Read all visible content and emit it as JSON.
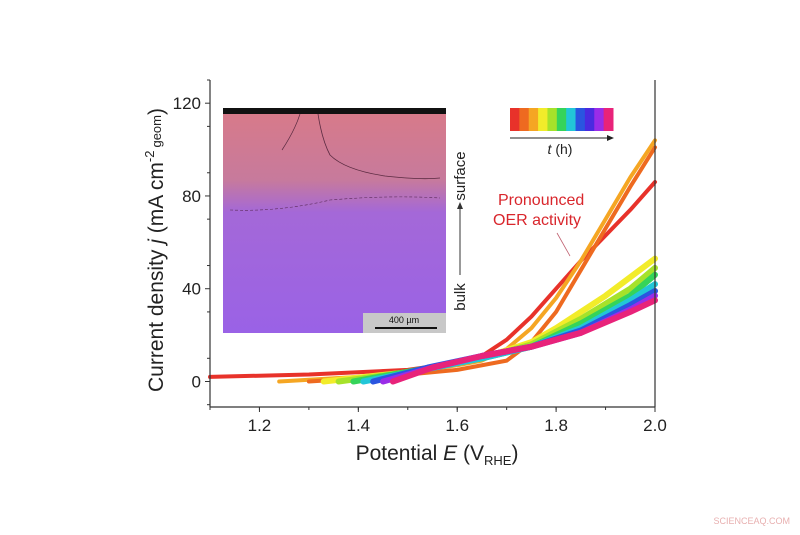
{
  "chart_data": {
    "type": "line",
    "xlabel": "Potential E (V_RHE)",
    "xlabel_parts": {
      "main": "Potential ",
      "var": "E",
      "open": " (V",
      "sub": "RHE",
      "close": ")"
    },
    "ylabel_parts": {
      "main": "Current density ",
      "var": "j",
      "unit": " (mA cm",
      "sup": "-2",
      "sub": "geom",
      "close": ")"
    },
    "xlim": [
      1.1,
      2.0
    ],
    "ylim": [
      -11,
      130
    ],
    "xticks": [
      "1.2",
      "1.4",
      "1.6",
      "1.8",
      "2.0"
    ],
    "xtick_values": [
      1.2,
      1.4,
      1.6,
      1.8,
      2.0
    ],
    "yticks": [
      "0",
      "40",
      "80",
      "120"
    ],
    "ytick_values": [
      0,
      40,
      80,
      120
    ],
    "grid": false,
    "series": [
      {
        "color": "#e8322a",
        "points": [
          [
            1.1,
            2
          ],
          [
            1.3,
            3
          ],
          [
            1.5,
            5
          ],
          [
            1.6,
            8
          ],
          [
            1.65,
            11
          ],
          [
            1.7,
            18
          ],
          [
            1.75,
            28
          ],
          [
            1.8,
            40
          ],
          [
            1.85,
            52
          ],
          [
            1.9,
            63
          ],
          [
            1.95,
            74
          ],
          [
            2.0,
            86
          ]
        ]
      },
      {
        "color": "#f5a623",
        "points": [
          [
            1.24,
            0
          ],
          [
            1.4,
            2
          ],
          [
            1.5,
            4
          ],
          [
            1.6,
            7
          ],
          [
            1.65,
            9
          ],
          [
            1.7,
            14
          ],
          [
            1.75,
            23
          ],
          [
            1.8,
            36
          ],
          [
            1.85,
            52
          ],
          [
            1.9,
            70
          ],
          [
            1.95,
            88
          ],
          [
            2.0,
            104
          ]
        ]
      },
      {
        "color": "#ee6a20",
        "points": [
          [
            1.3,
            0
          ],
          [
            1.45,
            2
          ],
          [
            1.6,
            5
          ],
          [
            1.7,
            9
          ],
          [
            1.75,
            17
          ],
          [
            1.8,
            30
          ],
          [
            1.85,
            48
          ],
          [
            1.9,
            66
          ],
          [
            1.95,
            84
          ],
          [
            2.0,
            101
          ]
        ]
      },
      {
        "color": "#f2ec2a",
        "points": [
          [
            1.33,
            0
          ],
          [
            1.5,
            4
          ],
          [
            1.65,
            10
          ],
          [
            1.75,
            17
          ],
          [
            1.8,
            23
          ],
          [
            1.9,
            37
          ],
          [
            2.0,
            53
          ]
        ]
      },
      {
        "color": "#a6e22a",
        "points": [
          [
            1.36,
            0
          ],
          [
            1.5,
            4
          ],
          [
            1.65,
            10
          ],
          [
            1.75,
            16
          ],
          [
            1.85,
            27
          ],
          [
            1.95,
            40
          ],
          [
            2.0,
            49
          ]
        ]
      },
      {
        "color": "#35d45a",
        "points": [
          [
            1.39,
            0
          ],
          [
            1.52,
            5
          ],
          [
            1.65,
            10
          ],
          [
            1.75,
            15
          ],
          [
            1.85,
            25
          ],
          [
            1.95,
            37
          ],
          [
            2.0,
            46
          ]
        ]
      },
      {
        "color": "#22c6d8",
        "points": [
          [
            1.41,
            0
          ],
          [
            1.53,
            5
          ],
          [
            1.65,
            10
          ],
          [
            1.75,
            15
          ],
          [
            1.85,
            23
          ],
          [
            1.95,
            35
          ],
          [
            2.0,
            42
          ]
        ]
      },
      {
        "color": "#2a55e0",
        "points": [
          [
            1.43,
            0
          ],
          [
            1.54,
            6
          ],
          [
            1.65,
            11
          ],
          [
            1.75,
            15
          ],
          [
            1.85,
            22
          ],
          [
            1.95,
            33
          ],
          [
            2.0,
            39
          ]
        ]
      },
      {
        "color": "#9a2ce8",
        "points": [
          [
            1.45,
            0
          ],
          [
            1.55,
            6
          ],
          [
            1.65,
            11
          ],
          [
            1.75,
            15
          ],
          [
            1.85,
            21
          ],
          [
            1.95,
            31
          ],
          [
            2.0,
            37
          ]
        ]
      },
      {
        "color": "#e8237a",
        "points": [
          [
            1.47,
            0
          ],
          [
            1.55,
            6
          ],
          [
            1.65,
            11
          ],
          [
            1.75,
            15
          ],
          [
            1.85,
            21
          ],
          [
            1.95,
            30
          ],
          [
            2.0,
            35
          ]
        ]
      }
    ],
    "annotations": {
      "oer_line1": "Pronounced",
      "oer_line2": "OER activity",
      "oer_color": "#d9262c",
      "time_label_var": "t",
      "time_label_unit": " (h)",
      "time_colorbar": [
        "#e8322a",
        "#ee6a20",
        "#f5a623",
        "#f2ec2a",
        "#a6e22a",
        "#35d45a",
        "#22c6d8",
        "#2a55e0",
        "#4a2ae0",
        "#9a2ce8",
        "#e8237a"
      ],
      "inset_scale": "400 µm",
      "inset_top_label": "surface",
      "inset_bottom_label": "bulk"
    }
  },
  "watermark": "SCIENCEAQ.COM"
}
